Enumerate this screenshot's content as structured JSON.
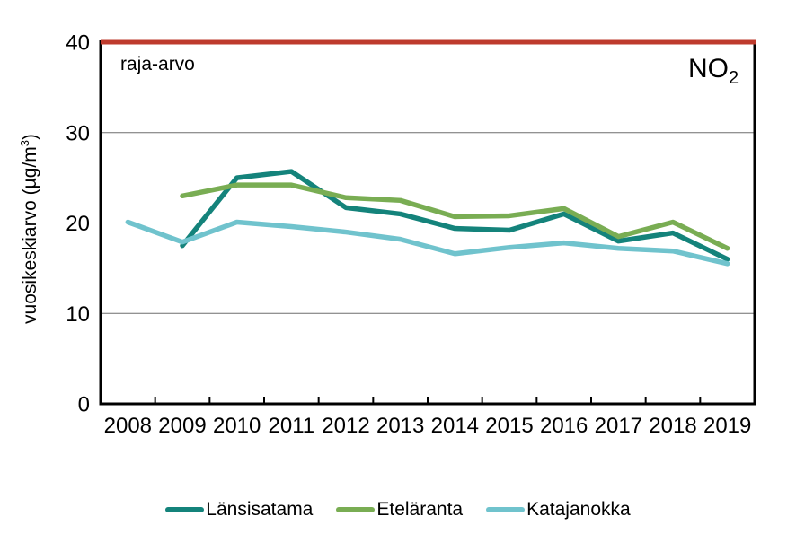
{
  "labels": {
    "limit_label": "raja-arvo",
    "pollutant": "NO",
    "pollutant_sub": "2",
    "ylabel_prefix": "vuosikeskiarvo (µg/m",
    "ylabel_sup": "3",
    "ylabel_suffix": ")"
  },
  "chart_data": {
    "type": "line",
    "title": "",
    "xlabel": "",
    "ylabel": "vuosikeskiarvo (µg/m³)",
    "annotation": "NO₂",
    "ylim": [
      0,
      40
    ],
    "yticks": [
      0,
      10,
      20,
      30,
      40
    ],
    "grid": true,
    "legend_position": "bottom",
    "x": [
      2008,
      2009,
      2010,
      2011,
      2012,
      2013,
      2014,
      2015,
      2016,
      2017,
      2018,
      2019
    ],
    "series": [
      {
        "name": "Länsisatama",
        "color": "#14837B",
        "values": [
          null,
          17.5,
          25.0,
          25.7,
          21.7,
          21.0,
          19.4,
          19.2,
          21.0,
          18.0,
          18.9,
          16.0
        ]
      },
      {
        "name": "Eteläranta",
        "color": "#79AD53",
        "values": [
          null,
          23.0,
          24.2,
          24.2,
          22.8,
          22.5,
          20.7,
          20.8,
          21.6,
          18.5,
          20.1,
          17.2
        ]
      },
      {
        "name": "Katajanokka",
        "color": "#70C3CD",
        "values": [
          20.1,
          17.9,
          20.1,
          19.6,
          19.0,
          18.2,
          16.6,
          17.3,
          17.8,
          17.2,
          16.9,
          15.5
        ]
      }
    ],
    "limit_line": {
      "label": "raja-arvo",
      "value": 40,
      "color": "#BE3B2D"
    }
  }
}
